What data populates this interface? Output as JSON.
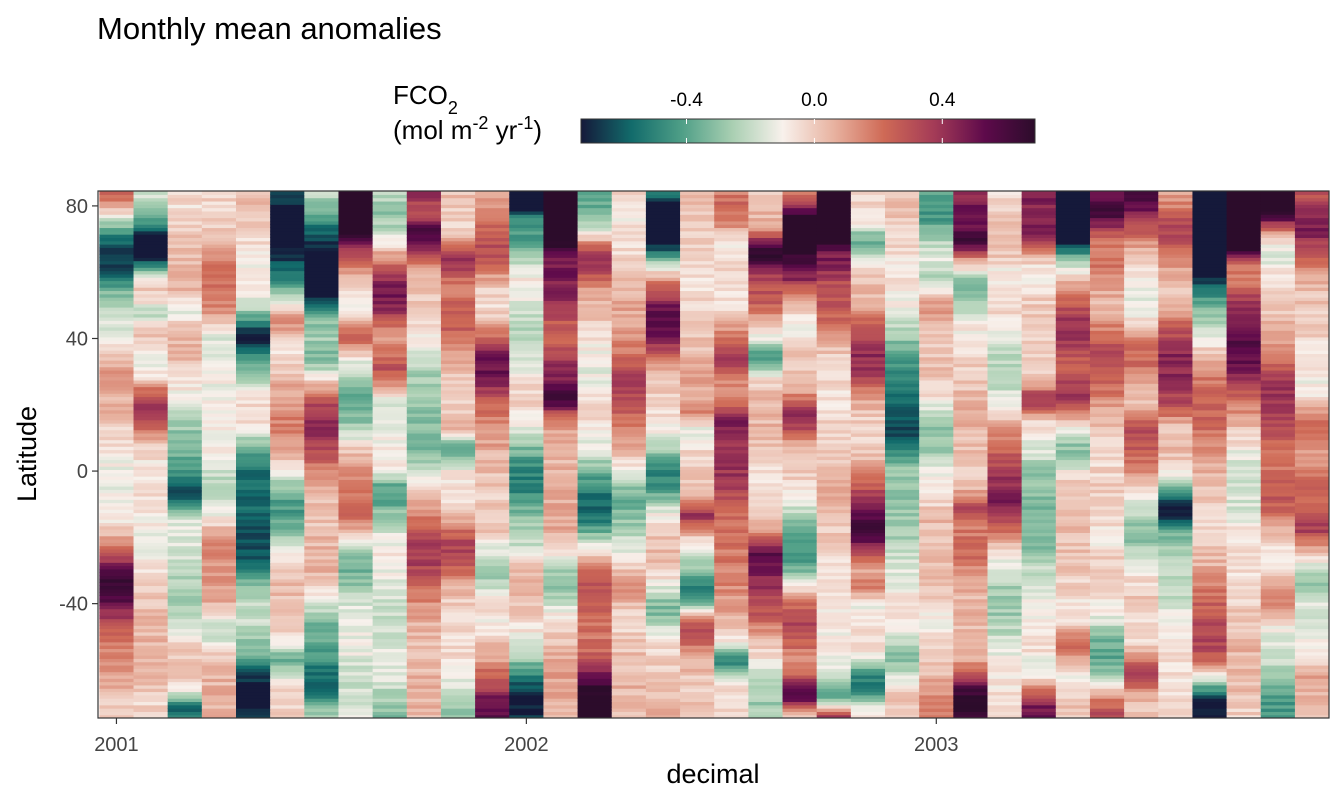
{
  "chart_data": {
    "type": "heatmap",
    "title": "Monthly mean anomalies",
    "xlabel": "decimal",
    "ylabel": "Latitude",
    "legend": {
      "title_line1": "FCO",
      "title_line1_sub": "2",
      "title_line2": [
        "(mol m",
        "-2",
        " yr",
        "-1",
        ")"
      ],
      "position": "top",
      "ticks": [
        -0.4,
        0.0,
        0.4
      ],
      "tick_labels": [
        "-0.4",
        "0.0",
        "0.4"
      ],
      "limits": [
        -0.73,
        0.69
      ],
      "colors": [
        "#15193a",
        "#126b6b",
        "#4f9f87",
        "#a9cfb2",
        "#f8f1ec",
        "#e8b3a1",
        "#cf6a56",
        "#a43b57",
        "#5e0a4b",
        "#2c0c2b"
      ]
    },
    "x_ticks": [
      2001,
      2002,
      2003
    ],
    "x_tick_labels": [
      "2001",
      "2002",
      "2003"
    ],
    "y_ticks": [
      -40,
      0,
      40,
      80
    ],
    "y_tick_labels": [
      "-40",
      "0",
      "40",
      "80"
    ],
    "xlim": [
      2000.955,
      2003.958
    ],
    "ylim": [
      -74.5,
      84.5
    ],
    "months": 36,
    "month_start": 2001.0,
    "month_step": 0.08333,
    "lat_start": -74,
    "lat_end": 84,
    "lat_step": 1,
    "grid": false,
    "value_description": "anomaly values in mol m-2 yr-1 per month (column) and latitude band (row); rendered from the anomaly field below"
  }
}
